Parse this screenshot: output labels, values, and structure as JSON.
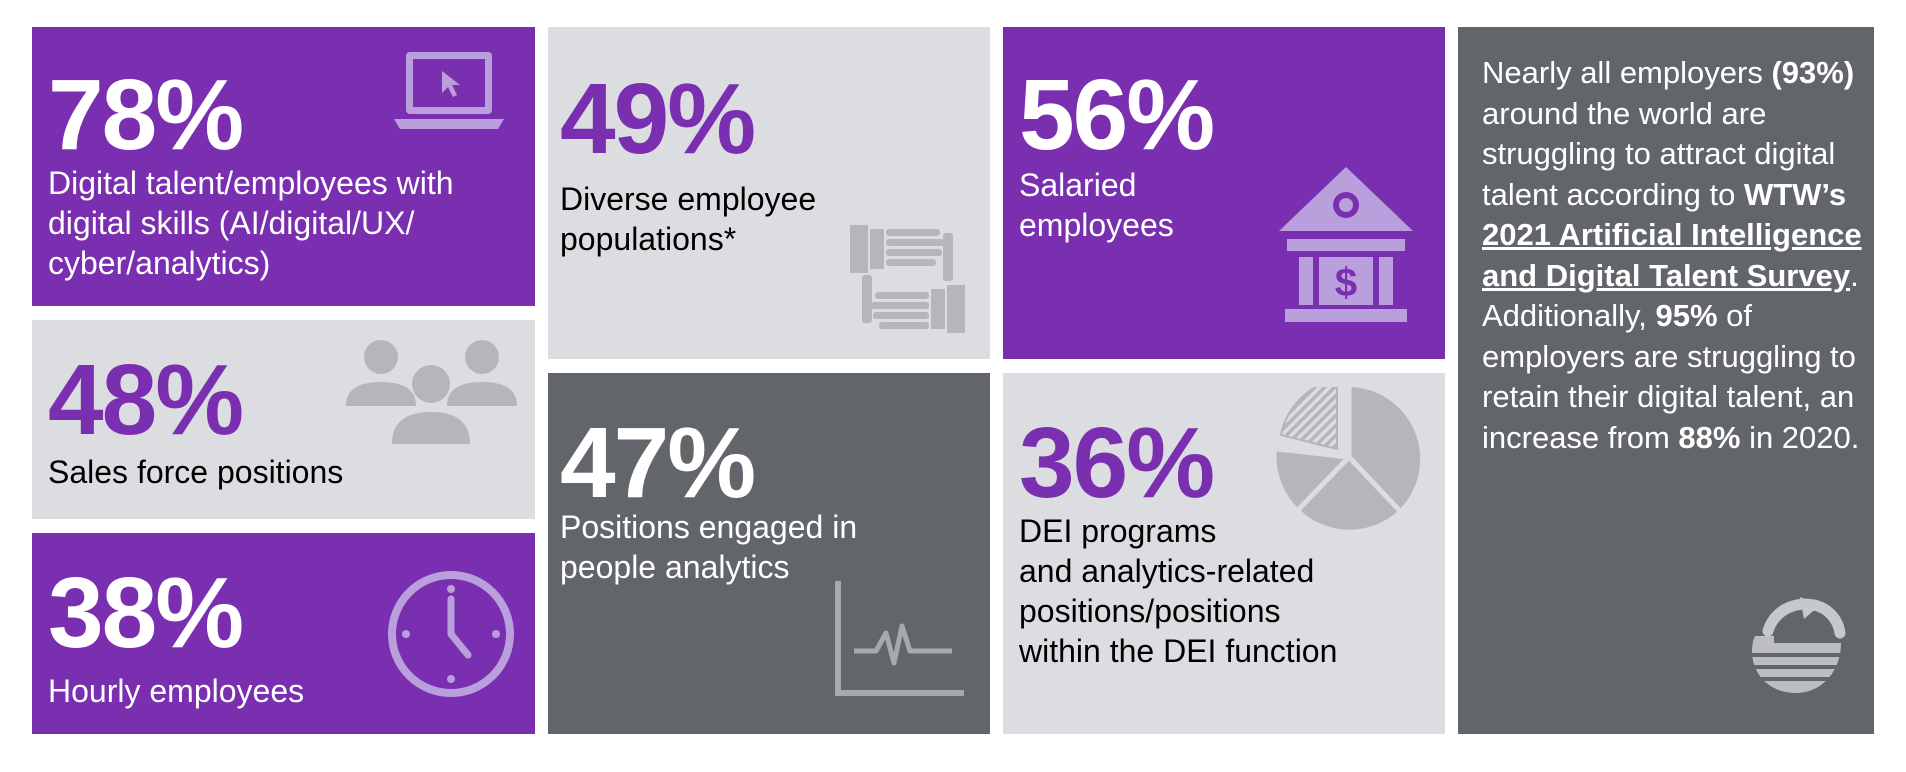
{
  "stats": [
    {
      "value": "78%",
      "label_lines": [
        "Digital talent/employees with",
        "digital skills (AI/digital/UX/",
        "cyber/analytics)"
      ],
      "icon": "laptop-icon"
    },
    {
      "value": "48%",
      "label_lines": [
        "Sales force positions"
      ],
      "icon": "people-group-icon"
    },
    {
      "value": "38%",
      "label_lines": [
        "Hourly employees"
      ],
      "icon": "clock-icon"
    },
    {
      "value": "49%",
      "label_lines": [
        "Diverse employee",
        "populations*"
      ],
      "icon": "joined-hands-icon"
    },
    {
      "value": "47%",
      "label_lines": [
        "Positions engaged in",
        "people analytics"
      ],
      "icon": "line-chart-icon"
    },
    {
      "value": "56%",
      "label_lines": [
        "Salaried",
        "employees"
      ],
      "icon": "bank-icon"
    },
    {
      "value": "36%",
      "label_lines": [
        "DEI programs",
        "and analytics-related",
        "positions/positions",
        "within the DEI function"
      ],
      "icon": "pie-chart-icon"
    }
  ],
  "summary": {
    "p1": "Nearly all employers",
    "p2": "(93%)",
    "p3": " around the world are struggling to attract digital talent according to ",
    "p4": "WTW’s",
    "p5": " ",
    "link": "2021 Artificial Intelligence and Digital Talent Survey",
    "p6": ". Additionally, ",
    "p7": "95%",
    "p8": " of employers are struggling to retain their digital talent, an increase from ",
    "p9": "88%",
    "p10": " in 2020."
  },
  "logo_icon": "wtw-globe-logo-icon",
  "colors": {
    "purple": "#7a2fb0",
    "light_gray": "#dcdde0",
    "dark_gray": "#626569",
    "icon_light": "#b9a0dc",
    "icon_gray": "#b4b6ba"
  }
}
